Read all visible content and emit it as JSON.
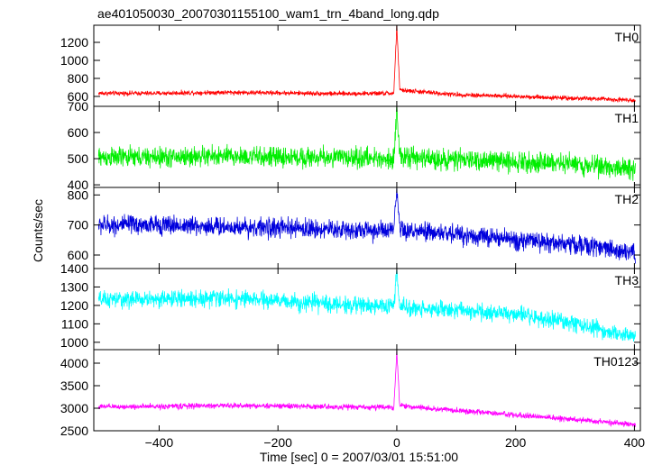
{
  "chart_data": {
    "type": "line",
    "title": "ae401050030_20070301155100_wam1_trn_4band_long.qdp",
    "xlabel": "Time [sec] 0 = 2007/03/01 15:51:00",
    "ylabel": "Counts/sec",
    "xlim": [
      -510,
      410
    ],
    "xticks": [
      -400,
      -200,
      0,
      200,
      400
    ],
    "x_tick_labels": [
      "−400",
      "−200",
      "0",
      "200",
      "400"
    ],
    "grid": false,
    "panels": [
      {
        "name": "TH0",
        "color": "#ff0000",
        "ylim": [
          490,
          1390
        ],
        "yticks": [
          600,
          800,
          1000,
          1200
        ],
        "y_tick_labels": [
          "600",
          "800",
          "1000",
          "1200"
        ],
        "x": [
          -500,
          -400,
          -300,
          -200,
          -100,
          -5,
          0,
          5,
          100,
          200,
          300,
          400
        ],
        "y": [
          635,
          635,
          645,
          640,
          630,
          635,
          1380,
          670,
          620,
          600,
          580,
          560
        ],
        "noise": 25
      },
      {
        "name": "TH1",
        "color": "#00ee00",
        "ylim": [
          390,
          700
        ],
        "yticks": [
          400,
          500,
          600,
          700
        ],
        "y_tick_labels": [
          "400",
          "500",
          "600",
          "700"
        ],
        "x": [
          -500,
          -400,
          -300,
          -200,
          -100,
          -5,
          0,
          5,
          100,
          200,
          300,
          400
        ],
        "y": [
          505,
          505,
          510,
          505,
          505,
          500,
          700,
          505,
          495,
          490,
          480,
          460
        ],
        "noise": 38
      },
      {
        "name": "TH2",
        "color": "#0000dd",
        "ylim": [
          555,
          825
        ],
        "yticks": [
          600,
          700,
          800
        ],
        "y_tick_labels": [
          "600",
          "700",
          "800"
        ],
        "x": [
          -500,
          -400,
          -300,
          -200,
          -100,
          -5,
          0,
          5,
          100,
          200,
          300,
          400
        ],
        "y": [
          700,
          700,
          695,
          690,
          685,
          680,
          820,
          680,
          670,
          650,
          635,
          610
        ],
        "noise": 32
      },
      {
        "name": "TH3",
        "color": "#00ffff",
        "ylim": [
          960,
          1400
        ],
        "yticks": [
          1000,
          1100,
          1200,
          1300,
          1400
        ],
        "y_tick_labels": [
          "1000",
          "1100",
          "1200",
          "1300",
          "1400"
        ],
        "x": [
          -500,
          -400,
          -300,
          -200,
          -100,
          -5,
          0,
          5,
          100,
          200,
          300,
          400
        ],
        "y": [
          1230,
          1235,
          1240,
          1225,
          1205,
          1195,
          1390,
          1190,
          1175,
          1150,
          1100,
          1030
        ],
        "noise": 45
      },
      {
        "name": "TH0123",
        "color": "#ff00ff",
        "ylim": [
          2500,
          4300
        ],
        "yticks": [
          2500,
          3000,
          3500,
          4000
        ],
        "y_tick_labels": [
          "2500",
          "3000",
          "3500",
          "4000"
        ],
        "x": [
          -500,
          -400,
          -300,
          -200,
          -100,
          -5,
          0,
          5,
          100,
          200,
          300,
          400
        ],
        "y": [
          3030,
          3040,
          3060,
          3050,
          3030,
          3020,
          4250,
          3050,
          2950,
          2850,
          2750,
          2640
        ],
        "noise": 60
      }
    ]
  }
}
